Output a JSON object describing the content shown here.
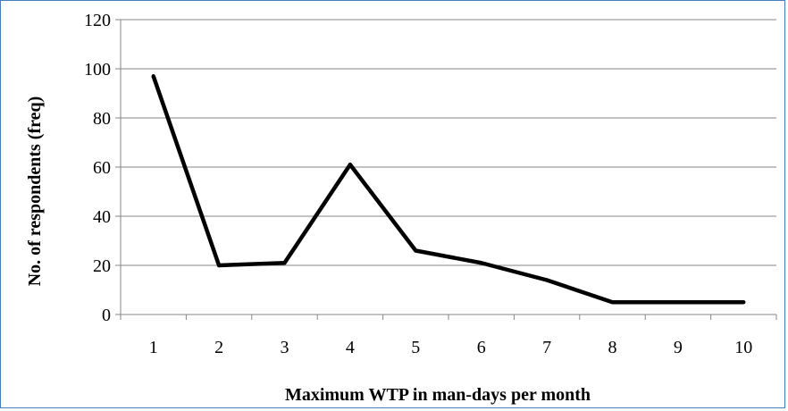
{
  "chart_data": {
    "type": "line",
    "title": "",
    "xlabel": "Maximum WTP in man-days per month",
    "ylabel": "No. of respondents (freq)",
    "categories": [
      "1",
      "2",
      "3",
      "4",
      "5",
      "6",
      "7",
      "8",
      "9",
      "10"
    ],
    "series": [
      {
        "values": [
          97,
          20,
          21,
          61,
          26,
          21,
          14,
          5,
          5,
          5
        ],
        "color": "#000000"
      }
    ],
    "ylim": [
      0,
      120
    ],
    "yticks": [
      "0",
      "20",
      "40",
      "60",
      "80",
      "100",
      "120"
    ],
    "grid": "horizontal",
    "legend": "none",
    "colors": {
      "frame_border": "#4a7ebb",
      "gridline": "#868686",
      "line": "#000000"
    }
  }
}
